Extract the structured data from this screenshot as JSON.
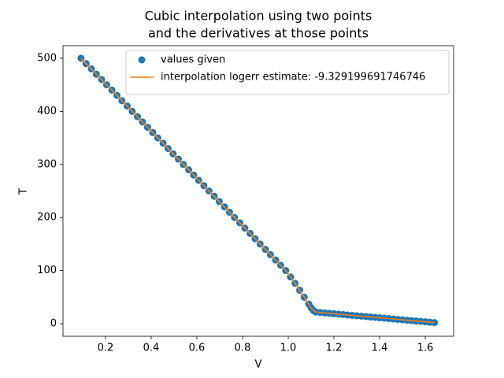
{
  "chart_data": {
    "type": "scatter",
    "title": [
      "Cubic interpolation using two points",
      "and the derivatives at those points"
    ],
    "x_label": "V",
    "y_label": "T",
    "x": [
      0.093,
      0.115,
      0.138,
      0.16,
      0.183,
      0.205,
      0.228,
      0.25,
      0.272,
      0.295,
      0.317,
      0.34,
      0.362,
      0.384,
      0.407,
      0.429,
      0.452,
      0.474,
      0.496,
      0.519,
      0.541,
      0.564,
      0.586,
      0.608,
      0.631,
      0.653,
      0.676,
      0.698,
      0.721,
      0.743,
      0.765,
      0.788,
      0.81,
      0.833,
      0.855,
      0.877,
      0.9,
      0.922,
      0.945,
      0.967,
      0.989,
      1.01,
      1.03,
      1.05,
      1.07,
      1.09,
      1.1,
      1.11,
      1.12,
      1.14,
      1.16,
      1.18,
      1.2,
      1.22,
      1.24,
      1.26,
      1.28,
      1.3,
      1.32,
      1.34,
      1.36,
      1.38,
      1.4,
      1.42,
      1.44,
      1.46,
      1.48,
      1.5,
      1.52,
      1.54,
      1.56,
      1.58,
      1.6,
      1.62,
      1.64
    ],
    "series": [
      {
        "name": "values given",
        "color": "#1f77b4",
        "kind": "scatter",
        "values": [
          500,
          490,
          480,
          470,
          460,
          450,
          440,
          430,
          420,
          410,
          400,
          390,
          380,
          370,
          360,
          350,
          340,
          330,
          320,
          310,
          300,
          290,
          280,
          270,
          260,
          250,
          240,
          230,
          220,
          210,
          200,
          190,
          180,
          170,
          160,
          150,
          140,
          130,
          120,
          110,
          100,
          88,
          76,
          63,
          50,
          37,
          30,
          25,
          22,
          21,
          20.2,
          19.5,
          18.7,
          18,
          17.2,
          16.4,
          15.7,
          14.9,
          14.2,
          13.4,
          12.6,
          11.9,
          11.1,
          10.4,
          9.6,
          8.8,
          8.1,
          7.3,
          6.6,
          5.8,
          5.0,
          4.3,
          3.5,
          2.8,
          2.0
        ]
      },
      {
        "name": "interpolation logerr estimate: -9.329199691746746",
        "color": "#ff7f0e",
        "kind": "line",
        "values": [
          500,
          490,
          480,
          470,
          460,
          450,
          440,
          430,
          420,
          410,
          400,
          390,
          380,
          370,
          360,
          350,
          340,
          330,
          320,
          310,
          300,
          290,
          280,
          270,
          260,
          250,
          240,
          230,
          220,
          210,
          200,
          190,
          180,
          170,
          160,
          150,
          140,
          130,
          120,
          110,
          100,
          88,
          76,
          63,
          50,
          37,
          30,
          25,
          22,
          21,
          20.2,
          19.5,
          18.7,
          18,
          17.2,
          16.4,
          15.7,
          14.9,
          14.2,
          13.4,
          12.6,
          11.9,
          11.1,
          10.4,
          9.6,
          8.8,
          8.1,
          7.3,
          6.6,
          5.8,
          5.0,
          4.3,
          3.5,
          2.8,
          2.0
        ]
      }
    ],
    "xlim": [
      0.014,
      1.724
    ],
    "ylim": [
      -23.7,
      523.7
    ],
    "xticks": [
      0.2,
      0.4,
      0.6,
      0.8,
      {
        "value": 1,
        "label": "1.0"
      },
      1.2,
      1.4,
      1.6
    ],
    "yticks": [
      0,
      100,
      200,
      300,
      400,
      500
    ],
    "legend": "upper center",
    "grid": false
  }
}
